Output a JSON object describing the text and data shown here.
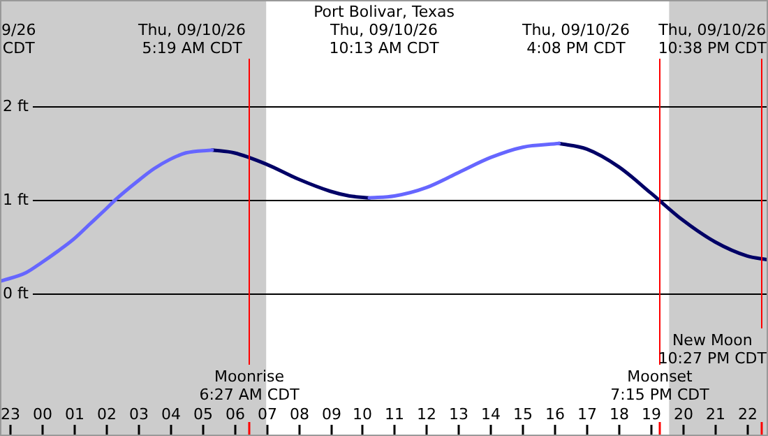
{
  "chart_data": {
    "type": "line",
    "title": "Port Bolivar, Texas",
    "xlim": [
      "--09-09T22:42",
      "--09-10T22:39"
    ],
    "ylim": [
      -1.52,
      3.13
    ],
    "xticks": [
      {
        "value": "--09-09T23:00",
        "label": "23"
      },
      {
        "value": "--09-10T00:00",
        "label": "00"
      },
      {
        "value": "--09-10T01:00",
        "label": "01"
      },
      {
        "value": "--09-10T02:00",
        "label": "02"
      },
      {
        "value": "--09-10T03:00",
        "label": "03"
      },
      {
        "value": "--09-10T04:00",
        "label": "04"
      },
      {
        "value": "--09-10T05:00",
        "label": "05"
      },
      {
        "value": "--09-10T06:00",
        "label": "06"
      },
      {
        "value": "--09-10T07:00",
        "label": "07"
      },
      {
        "value": "--09-10T08:00",
        "label": "08"
      },
      {
        "value": "--09-10T09:00",
        "label": "09"
      },
      {
        "value": "--09-10T10:00",
        "label": "10"
      },
      {
        "value": "--09-10T11:00",
        "label": "11"
      },
      {
        "value": "--09-10T12:00",
        "label": "12"
      },
      {
        "value": "--09-10T13:00",
        "label": "13"
      },
      {
        "value": "--09-10T14:00",
        "label": "14"
      },
      {
        "value": "--09-10T15:00",
        "label": "15"
      },
      {
        "value": "--09-10T16:00",
        "label": "16"
      },
      {
        "value": "--09-10T17:00",
        "label": "17"
      },
      {
        "value": "--09-10T18:00",
        "label": "18"
      },
      {
        "value": "--09-10T19:00",
        "label": "19"
      },
      {
        "value": "--09-10T20:00",
        "label": "20"
      },
      {
        "value": "--09-10T21:00",
        "label": "21"
      },
      {
        "value": "--09-10T22:00",
        "label": "22"
      }
    ],
    "yticks": [
      {
        "value": 0,
        "label": "0 ft"
      },
      {
        "value": 1,
        "label": "1 ft"
      },
      {
        "value": 2,
        "label": "2 ft"
      }
    ],
    "grid": "y",
    "series": [
      {
        "color": "#6666ff",
        "x": [
          "--09-09T22:42",
          "--09-09T23:30",
          "--09-10T00:00",
          "--09-10T00:30",
          "--09-10T01:00",
          "--09-10T01:30",
          "--09-10T02:00",
          "--09-10T02:18",
          "--09-10T03:00",
          "--09-10T03:30",
          "--09-10T04:00",
          "--09-10T04:30",
          "--09-10T05:19",
          "--09-10T07:00",
          "--09-10T10:13",
          "--09-10T11:00",
          "--09-10T12:00",
          "--09-10T13:00",
          "--09-10T14:00",
          "--09-10T15:00",
          "--09-10T16:08"
        ],
        "values": [
          0.13,
          0.22,
          0.33,
          0.45,
          0.58,
          0.74,
          0.9,
          1.0,
          1.2,
          1.33,
          1.43,
          1.5,
          1.53,
          null,
          1.02,
          1.04,
          1.13,
          1.29,
          1.45,
          1.56,
          1.6
        ]
      },
      {
        "color": "#000066",
        "x": [
          "--09-10T05:19",
          "--09-10T06:00",
          "--09-10T07:00",
          "--09-10T08:00",
          "--09-10T09:00",
          "--09-10T09:36",
          "--09-10T10:13",
          "--09-10T13:00",
          "--09-10T16:08",
          "--09-10T17:00",
          "--09-10T18:00",
          "--09-10T19:00",
          "--09-10T20:00",
          "--09-10T21:00",
          "--09-10T22:00",
          "--09-10T22:38"
        ],
        "values": [
          1.53,
          1.5,
          1.38,
          1.22,
          1.09,
          1.04,
          1.02,
          null,
          1.6,
          1.54,
          1.35,
          1.07,
          0.78,
          0.55,
          0.4,
          0.36
        ]
      }
    ],
    "bands": [
      {
        "axis": "x",
        "from": "--09-09T22:42",
        "to": "--09-10T07:00",
        "color": "#cccccc"
      },
      {
        "axis": "x",
        "from": "--09-10T19:34",
        "to": "--09-10T22:39",
        "color": "#cccccc"
      }
    ],
    "ref_lines": [
      {
        "axis": "x",
        "value": "--09-10T06:27",
        "label": "Moonrise\n6:27 AM CDT",
        "color": "#ff0000"
      },
      {
        "axis": "x",
        "value": "--09-10T19:15",
        "label": "Moonset\n7:15 PM CDT",
        "color": "#ff0000"
      },
      {
        "axis": "x",
        "value": "--09-10T22:27",
        "label": "New Moon\n10:27 PM CDT",
        "color": "#ff0000"
      }
    ],
    "annotations": [
      "9/26\nCDT",
      "Thu, 09/10/26\n5:19 AM CDT",
      "Thu, 09/10/26\n10:13 AM CDT",
      "Thu, 09/10/26\n4:08 PM CDT",
      "Thu, 09/10/26\n10:38 PM CDT"
    ]
  }
}
